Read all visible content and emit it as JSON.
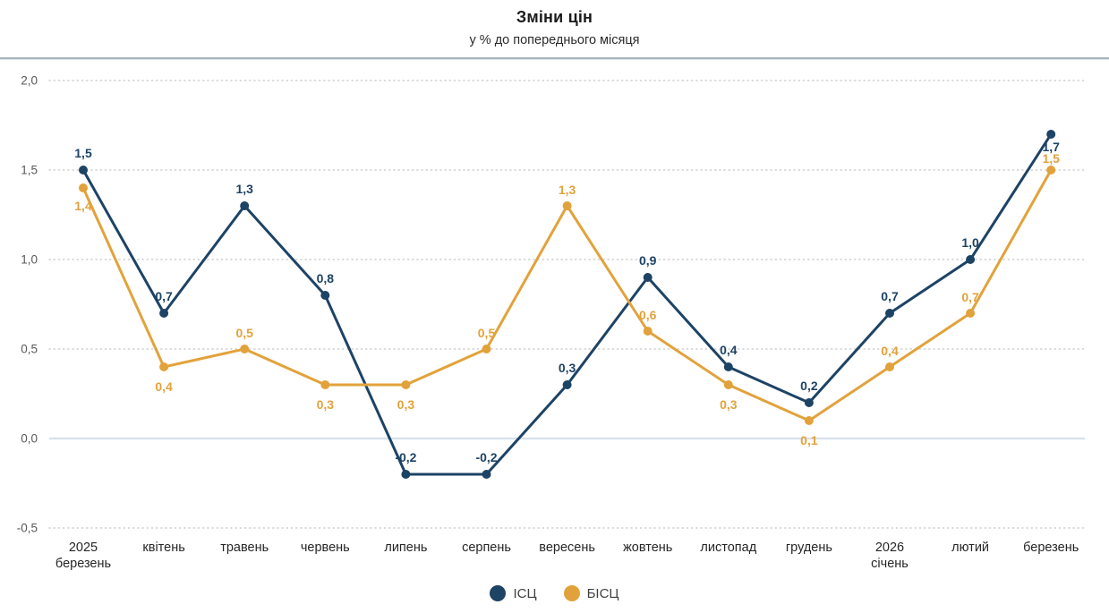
{
  "title": "Зміни цін",
  "subtitle": "у % до попереднього місяця",
  "chart_data": {
    "type": "line",
    "title": "Зміни цін",
    "subtitle": "у % до попереднього місяця",
    "categories": [
      [
        "2025",
        "березень"
      ],
      [
        "квітень"
      ],
      [
        "травень"
      ],
      [
        "червень"
      ],
      [
        "липень"
      ],
      [
        "серпень"
      ],
      [
        "вересень"
      ],
      [
        "жовтень"
      ],
      [
        "листопад"
      ],
      [
        "грудень"
      ],
      [
        "2026",
        "січень"
      ],
      [
        "лютий"
      ],
      [
        "березень"
      ]
    ],
    "y_ticks": [
      {
        "label": "2,0",
        "value": 2.0
      },
      {
        "label": "1,5",
        "value": 1.5
      },
      {
        "label": "1,0",
        "value": 1.0
      },
      {
        "label": "0,5",
        "value": 0.5
      },
      {
        "label": "0,0",
        "value": 0.0
      },
      {
        "label": "-0,5",
        "value": -0.5
      }
    ],
    "ylim": [
      -0.5,
      2.0
    ],
    "grid": "horizontal dotted, solid zero line",
    "legend_position": "bottom-center",
    "series": [
      {
        "name": "ІСЦ",
        "color": "#1d4365",
        "values": [
          1.5,
          0.7,
          1.3,
          0.8,
          -0.2,
          -0.2,
          0.3,
          0.9,
          0.4,
          0.2,
          0.7,
          1.0,
          1.7
        ],
        "labels": [
          "1,5",
          "0,7",
          "1,3",
          "0,8",
          "-0,2",
          "-0,2",
          "0,3",
          "0,9",
          "0,4",
          "0,2",
          "0,7",
          "1,0",
          "1,7"
        ],
        "label_dy": [
          -19,
          -19,
          -19,
          -19,
          -19,
          -19,
          -19,
          -19,
          -19,
          -19,
          -19,
          -19,
          14
        ]
      },
      {
        "name": "БІСЦ",
        "color": "#e2a23b",
        "values": [
          1.4,
          0.4,
          0.5,
          0.3,
          0.3,
          0.5,
          1.3,
          0.6,
          0.3,
          0.1,
          0.4,
          0.7,
          1.5
        ],
        "labels": [
          "1,4",
          "0,4",
          "0,5",
          "0,3",
          "0,3",
          "0,5",
          "1,3",
          "0,6",
          "0,3",
          "0,1",
          "0,4",
          "0,7",
          "1,5"
        ],
        "label_dy": [
          20,
          22,
          -18,
          22,
          22,
          -18,
          -18,
          -18,
          22,
          22,
          -18,
          -18,
          -13
        ]
      }
    ],
    "colors": {
      "zero_line": "#d8e2ec",
      "gridline": "#cfcfcf",
      "y_tick_text": "#595959",
      "x_tick_text": "#262626"
    }
  }
}
